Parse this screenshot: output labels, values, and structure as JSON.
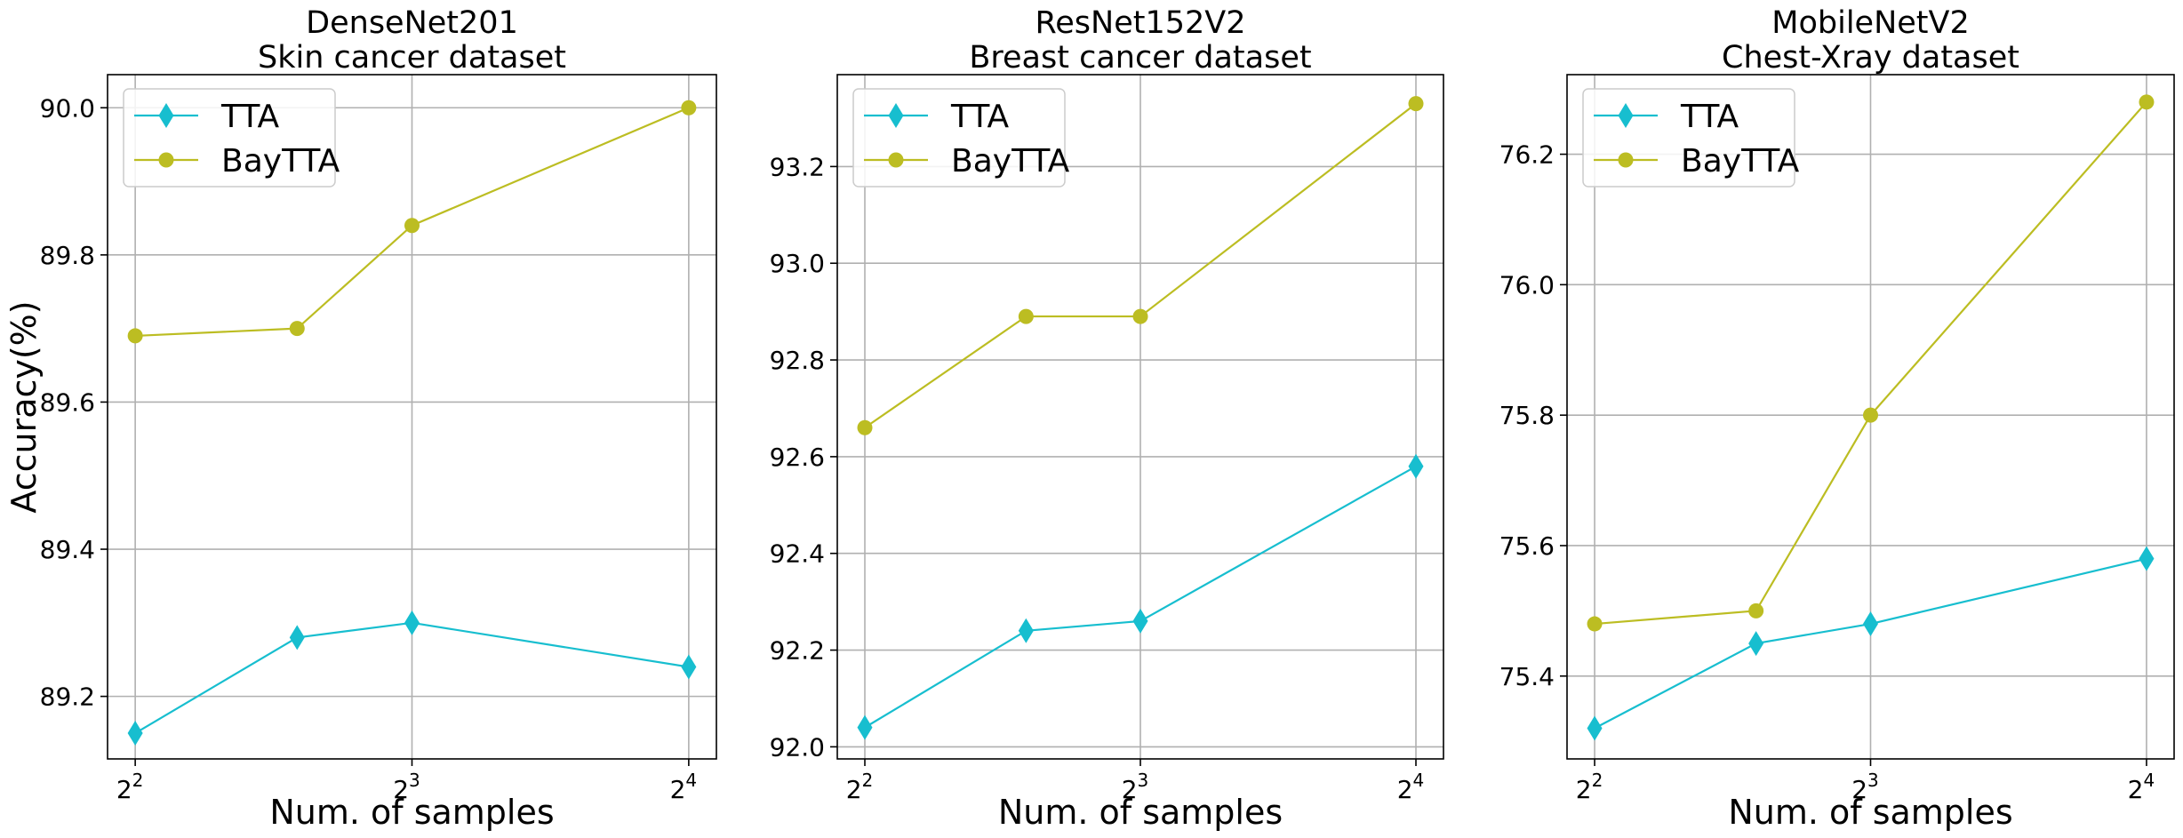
{
  "figure": {
    "ylabel": "Accuracy(%)",
    "xlabel": "Num. of samples"
  },
  "colors": {
    "tta": "#17becf",
    "baytta": "#bcbd22",
    "grid": "#b0b0b0"
  },
  "chart_data": [
    {
      "type": "line",
      "title": "DenseNet201",
      "subtitle": "Skin cancer dataset",
      "xlabel": "Num. of samples",
      "ylabel": "Accuracy(%)",
      "x_scale": "log2",
      "x": [
        4,
        6,
        8,
        16
      ],
      "x_ticks": [
        {
          "value": 4,
          "base": "2",
          "exp": "2"
        },
        {
          "value": 8,
          "base": "2",
          "exp": "3"
        },
        {
          "value": 16,
          "base": "2",
          "exp": "4"
        }
      ],
      "y_ticks": [
        "89.2",
        "89.4",
        "89.6",
        "89.8",
        "90.0"
      ],
      "ylim": [
        89.115,
        90.045
      ],
      "grid": true,
      "legend": "top-left",
      "series": [
        {
          "name": "TTA",
          "marker": "diamond",
          "color": "#17becf",
          "values": [
            89.15,
            89.28,
            89.3,
            89.24
          ]
        },
        {
          "name": "BayTTA",
          "marker": "circle",
          "color": "#bcbd22",
          "values": [
            89.69,
            89.7,
            89.84,
            90.0
          ]
        }
      ]
    },
    {
      "type": "line",
      "title": "ResNet152V2",
      "subtitle": "Breast cancer dataset",
      "xlabel": "Num. of samples",
      "ylabel": "",
      "x_scale": "log2",
      "x": [
        4,
        6,
        8,
        16
      ],
      "x_ticks": [
        {
          "value": 4,
          "base": "2",
          "exp": "2"
        },
        {
          "value": 8,
          "base": "2",
          "exp": "3"
        },
        {
          "value": 16,
          "base": "2",
          "exp": "4"
        }
      ],
      "y_ticks": [
        "92.0",
        "92.2",
        "92.4",
        "92.6",
        "92.8",
        "93.0",
        "93.2"
      ],
      "ylim": [
        91.975,
        93.39
      ],
      "grid": true,
      "legend": "top-left",
      "series": [
        {
          "name": "TTA",
          "marker": "diamond",
          "color": "#17becf",
          "values": [
            92.04,
            92.24,
            92.26,
            92.58
          ]
        },
        {
          "name": "BayTTA",
          "marker": "circle",
          "color": "#bcbd22",
          "values": [
            92.66,
            92.89,
            92.89,
            93.33
          ]
        }
      ]
    },
    {
      "type": "line",
      "title": "MobileNetV2",
      "subtitle": "Chest-Xray dataset",
      "xlabel": "Num. of samples",
      "ylabel": "",
      "x_scale": "log2",
      "x": [
        4,
        6,
        8,
        16
      ],
      "x_ticks": [
        {
          "value": 4,
          "base": "2",
          "exp": "2"
        },
        {
          "value": 8,
          "base": "2",
          "exp": "3"
        },
        {
          "value": 16,
          "base": "2",
          "exp": "4"
        }
      ],
      "y_ticks": [
        "75.4",
        "75.6",
        "75.8",
        "76.0",
        "76.2"
      ],
      "ylim": [
        75.273,
        76.322
      ],
      "grid": true,
      "legend": "top-left",
      "series": [
        {
          "name": "TTA",
          "marker": "diamond",
          "color": "#17becf",
          "values": [
            75.32,
            75.45,
            75.48,
            75.58
          ]
        },
        {
          "name": "BayTTA",
          "marker": "circle",
          "color": "#bcbd22",
          "values": [
            75.48,
            75.5,
            75.8,
            76.28
          ]
        }
      ]
    }
  ]
}
